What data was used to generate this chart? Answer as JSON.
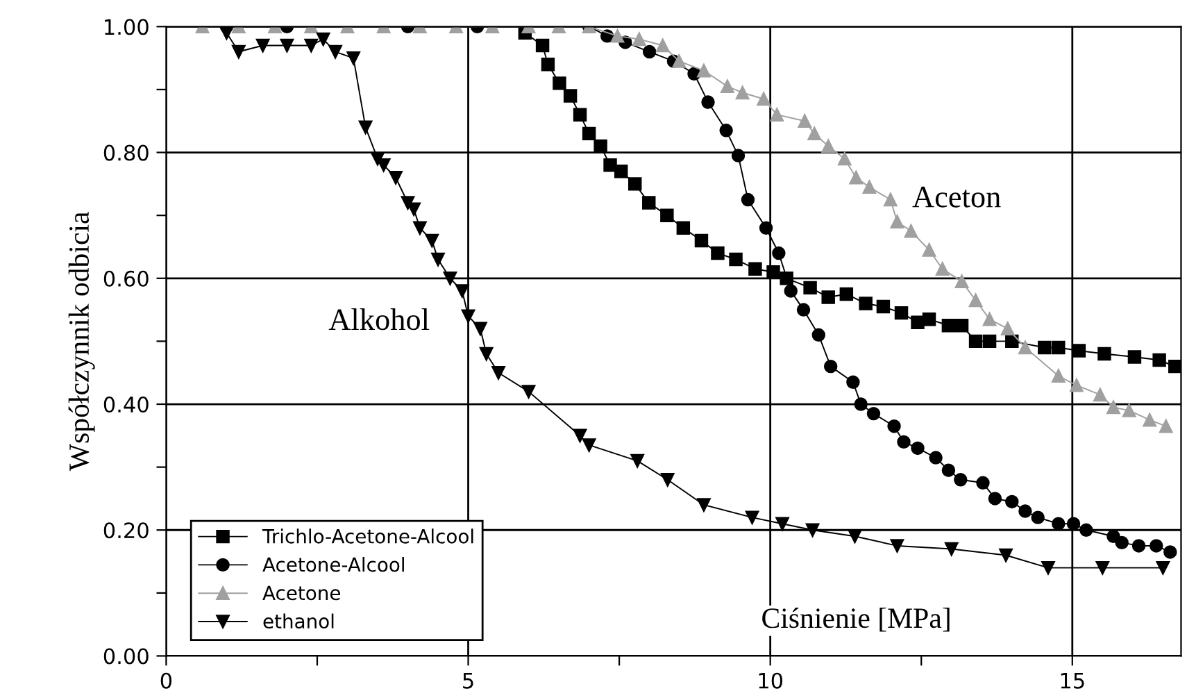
{
  "chart_data": {
    "type": "line",
    "xlabel": "Ciśnienie [MPa]",
    "ylabel": "Współczynnik odbicia",
    "xlim": [
      0,
      16.8
    ],
    "ylim": [
      0,
      1.0
    ],
    "xticks": [
      0,
      {
        "value": 2.5,
        "label": null
      },
      5,
      {
        "value": 7.5,
        "label": null
      },
      10,
      {
        "value": 12.5,
        "label": null
      },
      15
    ],
    "yticks": [
      {
        "value": 0,
        "label": "0.00"
      },
      {
        "value": 0.1,
        "label": null
      },
      {
        "value": 0.2,
        "label": "0.20"
      },
      {
        "value": 0.3,
        "label": null
      },
      {
        "value": 0.4,
        "label": "0.40"
      },
      {
        "value": 0.5,
        "label": null
      },
      {
        "value": 0.6,
        "label": "0.60"
      },
      {
        "value": 0.7,
        "label": null
      },
      {
        "value": 0.8,
        "label": "0.80"
      },
      {
        "value": 0.9,
        "label": null
      },
      {
        "value": 1.0,
        "label": "1.00"
      }
    ],
    "grid": true,
    "legend": "bottom left",
    "line_style": "solid",
    "annotations": [
      "Aceton",
      "Alkohol"
    ],
    "series": [
      {
        "name": "Trichlo-Acetone-Alcool",
        "color": "#000000",
        "marker": "square",
        "x": [
          5.94,
          6.23,
          6.32,
          6.51,
          6.69,
          6.85,
          7.0,
          7.19,
          7.35,
          7.53,
          7.76,
          7.99,
          8.29,
          8.56,
          8.86,
          9.13,
          9.43,
          9.75,
          10.05,
          10.27,
          10.66,
          10.96,
          11.26,
          11.58,
          11.87,
          12.17,
          12.44,
          12.63,
          12.95,
          13.17,
          13.4,
          13.63,
          14.0,
          14.54,
          14.77,
          15.11,
          15.53,
          16.03,
          16.44,
          16.7
        ],
        "values": [
          0.99,
          0.97,
          0.94,
          0.91,
          0.89,
          0.86,
          0.83,
          0.81,
          0.78,
          0.77,
          0.75,
          0.72,
          0.7,
          0.68,
          0.66,
          0.64,
          0.63,
          0.615,
          0.61,
          0.6,
          0.585,
          0.57,
          0.575,
          0.56,
          0.555,
          0.545,
          0.53,
          0.535,
          0.525,
          0.525,
          0.5,
          0.5,
          0.5,
          0.49,
          0.49,
          0.485,
          0.48,
          0.475,
          0.47,
          0.46
        ]
      },
      {
        "name": "Acetone-Alcool",
        "color": "#000000",
        "marker": "circle",
        "x": [
          1.0,
          2.0,
          4.0,
          5.15,
          7.0,
          7.3,
          7.6,
          8.0,
          8.4,
          8.74,
          8.97,
          9.27,
          9.47,
          9.63,
          9.93,
          10.14,
          10.34,
          10.55,
          10.8,
          11.0,
          11.37,
          11.5,
          11.71,
          12.05,
          12.21,
          12.44,
          12.74,
          12.95,
          13.15,
          13.52,
          13.72,
          14.0,
          14.22,
          14.43,
          14.77,
          15.02,
          15.23,
          15.68,
          15.82,
          16.1,
          16.39,
          16.62
        ],
        "values": [
          1.0,
          1.0,
          1.0,
          1.0,
          1.0,
          0.985,
          0.975,
          0.96,
          0.945,
          0.925,
          0.88,
          0.835,
          0.795,
          0.725,
          0.68,
          0.64,
          0.58,
          0.55,
          0.51,
          0.46,
          0.435,
          0.4,
          0.385,
          0.365,
          0.34,
          0.33,
          0.315,
          0.295,
          0.28,
          0.275,
          0.25,
          0.245,
          0.23,
          0.22,
          0.21,
          0.21,
          0.2,
          0.19,
          0.18,
          0.175,
          0.175,
          0.165
        ]
      },
      {
        "name": "Acetone",
        "color": "#a0a0a0",
        "marker": "triangle",
        "x": [
          0.6,
          1.2,
          1.8,
          2.4,
          3.0,
          3.6,
          4.2,
          4.8,
          5.4,
          6.0,
          6.5,
          7.0,
          7.47,
          7.83,
          8.22,
          8.49,
          8.9,
          9.29,
          9.54,
          9.89,
          10.11,
          10.57,
          10.73,
          10.96,
          11.23,
          11.42,
          11.64,
          11.99,
          12.1,
          12.33,
          12.63,
          12.85,
          13.17,
          13.4,
          13.63,
          13.93,
          14.22,
          14.77,
          15.07,
          15.46,
          15.68,
          15.94,
          16.28,
          16.55
        ],
        "values": [
          1.0,
          1.0,
          1.0,
          1.0,
          1.0,
          1.0,
          1.0,
          1.0,
          1.0,
          1.0,
          1.0,
          1.0,
          0.985,
          0.98,
          0.97,
          0.945,
          0.93,
          0.905,
          0.895,
          0.885,
          0.86,
          0.85,
          0.83,
          0.81,
          0.79,
          0.76,
          0.745,
          0.725,
          0.69,
          0.675,
          0.645,
          0.615,
          0.595,
          0.565,
          0.535,
          0.52,
          0.49,
          0.445,
          0.43,
          0.415,
          0.395,
          0.39,
          0.375,
          0.365
        ]
      },
      {
        "name": "ethanol",
        "color": "#000000",
        "marker": "triangle_down",
        "x": [
          1.0,
          1.2,
          1.6,
          2.0,
          2.4,
          2.6,
          2.8,
          3.1,
          3.3,
          3.5,
          3.6,
          3.8,
          4.0,
          4.1,
          4.2,
          4.4,
          4.5,
          4.7,
          4.9,
          5.0,
          5.2,
          5.3,
          5.5,
          6.0,
          6.85,
          7.0,
          7.8,
          8.3,
          8.9,
          9.7,
          10.2,
          10.7,
          11.4,
          12.1,
          13.0,
          13.9,
          14.6,
          15.5,
          16.5
        ],
        "values": [
          0.99,
          0.96,
          0.97,
          0.97,
          0.97,
          0.98,
          0.96,
          0.95,
          0.84,
          0.79,
          0.78,
          0.76,
          0.72,
          0.71,
          0.68,
          0.66,
          0.63,
          0.6,
          0.58,
          0.54,
          0.52,
          0.48,
          0.45,
          0.42,
          0.35,
          0.335,
          0.31,
          0.28,
          0.24,
          0.22,
          0.21,
          0.2,
          0.19,
          0.175,
          0.17,
          0.16,
          0.14,
          0.14,
          0.14
        ]
      }
    ]
  }
}
